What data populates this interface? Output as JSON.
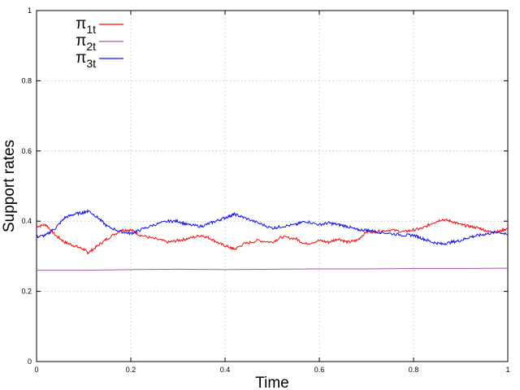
{
  "chart_data": {
    "type": "line",
    "xlabel": "Time",
    "ylabel": "Support rates",
    "xlim": [
      0,
      1
    ],
    "ylim": [
      0,
      1
    ],
    "xticks": [
      "0",
      "0.2",
      "0.4",
      "0.6",
      "0.8",
      "1"
    ],
    "yticks": [
      "0",
      "0.2",
      "0.4",
      "0.6",
      "0.8",
      "1"
    ],
    "grid": true,
    "legend_position": "top-left",
    "series": [
      {
        "name": "π1t",
        "name_base": "π",
        "name_sub": "1t",
        "color": "#ee1111",
        "x": [
          0,
          0.02,
          0.04,
          0.06,
          0.08,
          0.1,
          0.11,
          0.13,
          0.15,
          0.18,
          0.2,
          0.22,
          0.25,
          0.28,
          0.3,
          0.32,
          0.35,
          0.37,
          0.39,
          0.41,
          0.42,
          0.44,
          0.47,
          0.5,
          0.52,
          0.55,
          0.57,
          0.6,
          0.62,
          0.64,
          0.66,
          0.68,
          0.7,
          0.72,
          0.75,
          0.78,
          0.8,
          0.82,
          0.84,
          0.86,
          0.88,
          0.9,
          0.92,
          0.94,
          0.96,
          0.98,
          1
        ],
        "values": [
          0.385,
          0.39,
          0.36,
          0.34,
          0.33,
          0.32,
          0.31,
          0.33,
          0.35,
          0.375,
          0.375,
          0.36,
          0.35,
          0.34,
          0.345,
          0.35,
          0.36,
          0.35,
          0.335,
          0.325,
          0.32,
          0.335,
          0.345,
          0.34,
          0.355,
          0.35,
          0.335,
          0.345,
          0.34,
          0.35,
          0.34,
          0.345,
          0.37,
          0.37,
          0.375,
          0.37,
          0.375,
          0.38,
          0.395,
          0.405,
          0.4,
          0.39,
          0.385,
          0.38,
          0.37,
          0.37,
          0.38
        ]
      },
      {
        "name": "π2t",
        "name_base": "π",
        "name_sub": "2t",
        "color": "#a05aa8",
        "x": [
          0,
          0.1,
          0.2,
          0.3,
          0.4,
          0.5,
          0.6,
          0.7,
          0.8,
          0.9,
          1
        ],
        "values": [
          0.26,
          0.26,
          0.262,
          0.263,
          0.262,
          0.263,
          0.264,
          0.264,
          0.265,
          0.265,
          0.266
        ]
      },
      {
        "name": "π3t",
        "name_base": "π",
        "name_sub": "3t",
        "color": "#1111ee",
        "x": [
          0,
          0.02,
          0.04,
          0.06,
          0.08,
          0.1,
          0.11,
          0.13,
          0.15,
          0.18,
          0.2,
          0.22,
          0.25,
          0.28,
          0.3,
          0.32,
          0.35,
          0.37,
          0.39,
          0.41,
          0.42,
          0.44,
          0.47,
          0.5,
          0.52,
          0.55,
          0.57,
          0.6,
          0.62,
          0.64,
          0.66,
          0.68,
          0.7,
          0.72,
          0.75,
          0.78,
          0.8,
          0.82,
          0.84,
          0.86,
          0.88,
          0.9,
          0.92,
          0.94,
          0.96,
          0.98,
          1
        ],
        "values": [
          0.355,
          0.36,
          0.38,
          0.41,
          0.42,
          0.425,
          0.43,
          0.41,
          0.385,
          0.37,
          0.365,
          0.375,
          0.39,
          0.4,
          0.4,
          0.39,
          0.385,
          0.395,
          0.405,
          0.415,
          0.42,
          0.41,
          0.395,
          0.38,
          0.385,
          0.39,
          0.4,
          0.39,
          0.395,
          0.39,
          0.385,
          0.375,
          0.375,
          0.37,
          0.365,
          0.36,
          0.36,
          0.35,
          0.34,
          0.335,
          0.34,
          0.345,
          0.355,
          0.36,
          0.365,
          0.37,
          0.36
        ]
      }
    ]
  }
}
